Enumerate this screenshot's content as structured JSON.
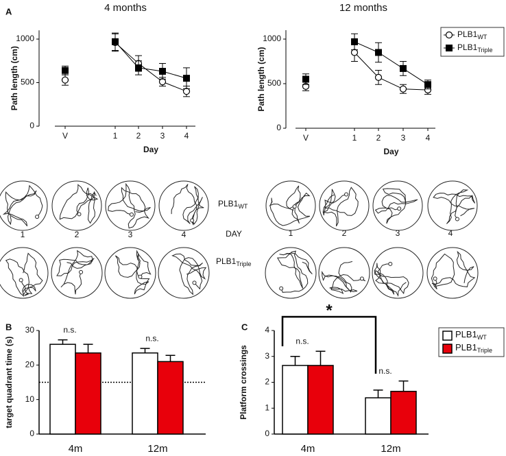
{
  "panel_labels": [
    "A",
    "B",
    "C"
  ],
  "chart_data": [
    {
      "type": "line",
      "title": "4 months",
      "xlabel": "Day",
      "ylabel": "Path length (cm)",
      "categories": [
        "V",
        "1",
        "2",
        "3",
        "4"
      ],
      "ylim": [
        0,
        1100
      ],
      "yticks": [
        0,
        500,
        1000
      ],
      "series": [
        {
          "name": "PLB1",
          "subscript": "WT",
          "marker": "open-circle",
          "color": "#000000",
          "values": [
            530,
            960,
            720,
            510,
            400
          ],
          "errors": [
            60,
            100,
            90,
            50,
            60
          ]
        },
        {
          "name": "PLB1",
          "subscript": "Triple",
          "marker": "filled-square",
          "color": "#000000",
          "values": [
            640,
            970,
            670,
            630,
            550
          ],
          "errors": [
            50,
            100,
            80,
            90,
            120
          ]
        }
      ]
    },
    {
      "type": "line",
      "title": "12 months",
      "xlabel": "Day",
      "ylabel": "Path length (cm)",
      "categories": [
        "V",
        "1",
        "2",
        "3",
        "4"
      ],
      "ylim": [
        0,
        1100
      ],
      "yticks": [
        0,
        500,
        1000
      ],
      "legend": "outside right",
      "series": [
        {
          "name": "PLB1",
          "subscript": "WT",
          "marker": "open-circle",
          "color": "#000000",
          "values": [
            470,
            850,
            570,
            440,
            430
          ],
          "errors": [
            50,
            100,
            80,
            50,
            50
          ]
        },
        {
          "name": "PLB1",
          "subscript": "Triple",
          "marker": "filled-square",
          "color": "#000000",
          "values": [
            550,
            970,
            850,
            670,
            490
          ],
          "errors": [
            60,
            90,
            110,
            80,
            50
          ]
        }
      ]
    },
    {
      "type": "bar",
      "ylabel": "target quadrant time (s)",
      "categories": [
        "4m",
        "12m"
      ],
      "ylim": [
        0,
        30
      ],
      "yticks": [
        0,
        10,
        20,
        30
      ],
      "reference_line": 15,
      "annotations": [
        "n.s.",
        "n.s."
      ],
      "series": [
        {
          "name": "PLB1",
          "subscript": "WT",
          "color": "#ffffff",
          "values": [
            26,
            23.5
          ],
          "errors": [
            1.3,
            1.3
          ]
        },
        {
          "name": "PLB1",
          "subscript": "Triple",
          "color": "#e8000b",
          "values": [
            23.5,
            21
          ],
          "errors": [
            2.5,
            1.8
          ]
        }
      ]
    },
    {
      "type": "bar",
      "ylabel": "Platform crossings",
      "categories": [
        "4m",
        "12m"
      ],
      "ylim": [
        0,
        4
      ],
      "yticks": [
        0,
        1,
        2,
        3,
        4
      ],
      "annotations": [
        "n.s.",
        "n.s."
      ],
      "significance": "*",
      "legend": "outside right",
      "series": [
        {
          "name": "PLB1",
          "subscript": "WT",
          "color": "#ffffff",
          "values": [
            2.65,
            1.4
          ],
          "errors": [
            0.35,
            0.3
          ]
        },
        {
          "name": "PLB1",
          "subscript": "Triple",
          "color": "#e8000b",
          "values": [
            2.65,
            1.65
          ],
          "errors": [
            0.55,
            0.4
          ]
        }
      ]
    }
  ],
  "tracks": {
    "day_label": "DAY",
    "left_days": [
      "1",
      "2",
      "3",
      "4"
    ],
    "right_days": [
      "1",
      "2",
      "3",
      "4"
    ],
    "rows": [
      {
        "name": "PLB1",
        "subscript": "WT"
      },
      {
        "name": "PLB1",
        "subscript": "Triple"
      }
    ]
  }
}
